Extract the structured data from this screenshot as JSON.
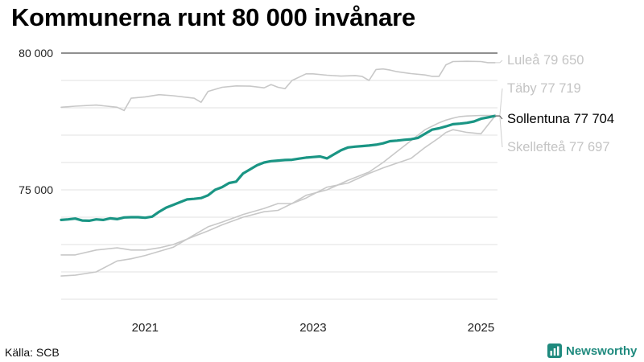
{
  "title": "Kommunerna runt 80 000 invånare",
  "source": "Källa: SCB",
  "brand": "Newsworthy",
  "colors": {
    "highlight": "#1a9584",
    "muted": "#c8c8c8",
    "brand": "#1f8a7e"
  },
  "chart_data": {
    "type": "line",
    "title": "Kommunerna runt 80 000 invånare",
    "xlabel": "",
    "ylabel": "",
    "x_ticks": [
      "2021",
      "2023",
      "2025"
    ],
    "y_ticks": [
      "75 000",
      "80 000"
    ],
    "ylim": [
      71000,
      80300
    ],
    "grid": true,
    "legend": "direct labels at line ends",
    "series": [
      {
        "name": "Luleå",
        "end_label": "Luleå 79 650",
        "highlight": false,
        "x": [
          "2020-01",
          "2020-03",
          "2020-06",
          "2020-09",
          "2020-10",
          "2020-11",
          "2021-01",
          "2021-03",
          "2021-05",
          "2021-07",
          "2021-08",
          "2021-09",
          "2021-10",
          "2021-12",
          "2022-02",
          "2022-04",
          "2022-06",
          "2022-07",
          "2022-08",
          "2022-09",
          "2022-10",
          "2022-12",
          "2023-01",
          "2023-03",
          "2023-05",
          "2023-07",
          "2023-08",
          "2023-09",
          "2023-10",
          "2023-11",
          "2023-12",
          "2024-01",
          "2024-03",
          "2024-05",
          "2024-06",
          "2024-07",
          "2024-08",
          "2024-09",
          "2024-11",
          "2025-01",
          "2025-02",
          "2025-03"
        ],
        "y": [
          78020,
          78060,
          78100,
          78020,
          77900,
          78350,
          78400,
          78480,
          78440,
          78380,
          78350,
          78200,
          78600,
          78750,
          78800,
          78790,
          78730,
          78850,
          78750,
          78700,
          79000,
          79240,
          79240,
          79190,
          79160,
          79180,
          79150,
          79000,
          79400,
          79420,
          79380,
          79320,
          79250,
          79200,
          79150,
          79150,
          79570,
          79690,
          79700,
          79690,
          79650,
          79650
        ]
      },
      {
        "name": "Täby",
        "end_label": "Täby 77 719",
        "highlight": false,
        "x": [
          "2020-01",
          "2020-03",
          "2020-06",
          "2020-09",
          "2020-11",
          "2021-01",
          "2021-03",
          "2021-05",
          "2021-06",
          "2021-07",
          "2021-08",
          "2021-10",
          "2021-12",
          "2022-03",
          "2022-06",
          "2022-08",
          "2022-10",
          "2022-12",
          "2023-03",
          "2023-06",
          "2023-09",
          "2023-11",
          "2024-01",
          "2024-03",
          "2024-05",
          "2024-07",
          "2024-08",
          "2024-09",
          "2024-10",
          "2024-11",
          "2025-01",
          "2025-03"
        ],
        "y": [
          72620,
          72620,
          72800,
          72880,
          72800,
          72800,
          72880,
          73000,
          73100,
          73200,
          73300,
          73500,
          73720,
          74000,
          74200,
          74250,
          74500,
          74800,
          75000,
          75350,
          75650,
          76000,
          76400,
          76800,
          77200,
          77450,
          77550,
          77620,
          77680,
          77700,
          77720,
          77719
        ]
      },
      {
        "name": "Skellefteå",
        "end_label": "Skellefteå 77 697",
        "highlight": false,
        "x": [
          "2020-01",
          "2020-03",
          "2020-06",
          "2020-09",
          "2020-11",
          "2021-01",
          "2021-03",
          "2021-05",
          "2021-06",
          "2021-07",
          "2021-08",
          "2021-10",
          "2021-12",
          "2022-03",
          "2022-06",
          "2022-08",
          "2022-10",
          "2022-12",
          "2023-03",
          "2023-06",
          "2023-09",
          "2023-11",
          "2024-01",
          "2024-03",
          "2024-05",
          "2024-07",
          "2024-08",
          "2024-09",
          "2024-10",
          "2024-11",
          "2025-01",
          "2025-03"
        ],
        "y": [
          71850,
          71880,
          72000,
          72400,
          72480,
          72600,
          72750,
          72900,
          73050,
          73200,
          73350,
          73650,
          73820,
          74100,
          74320,
          74500,
          74500,
          74700,
          75100,
          75250,
          75600,
          75800,
          75980,
          76150,
          76550,
          76900,
          77100,
          77200,
          77150,
          77100,
          77050,
          77697
        ]
      },
      {
        "name": "Sollentuna",
        "end_label": "Sollentuna 77 704",
        "highlight": true,
        "x": [
          "2020-01",
          "2020-02",
          "2020-03",
          "2020-04",
          "2020-05",
          "2020-06",
          "2020-07",
          "2020-08",
          "2020-09",
          "2020-10",
          "2020-11",
          "2020-12",
          "2021-01",
          "2021-02",
          "2021-03",
          "2021-04",
          "2021-05",
          "2021-06",
          "2021-07",
          "2021-08",
          "2021-09",
          "2021-10",
          "2021-11",
          "2021-12",
          "2022-01",
          "2022-02",
          "2022-03",
          "2022-04",
          "2022-05",
          "2022-06",
          "2022-07",
          "2022-08",
          "2022-09",
          "2022-10",
          "2022-11",
          "2022-12",
          "2023-01",
          "2023-02",
          "2023-03",
          "2023-04",
          "2023-05",
          "2023-06",
          "2023-07",
          "2023-08",
          "2023-09",
          "2023-10",
          "2023-11",
          "2023-12",
          "2024-01",
          "2024-02",
          "2024-03",
          "2024-04",
          "2024-05",
          "2024-06",
          "2024-07",
          "2024-08",
          "2024-09",
          "2024-10",
          "2024-11",
          "2024-12",
          "2025-01",
          "2025-02",
          "2025-03"
        ],
        "y": [
          73900,
          73920,
          73950,
          73880,
          73870,
          73920,
          73900,
          73960,
          73930,
          73990,
          74000,
          74000,
          73980,
          74020,
          74200,
          74350,
          74450,
          74550,
          74650,
          74670,
          74700,
          74800,
          75000,
          75100,
          75250,
          75300,
          75600,
          75750,
          75900,
          76000,
          76050,
          76070,
          76090,
          76100,
          76140,
          76180,
          76200,
          76220,
          76150,
          76300,
          76450,
          76550,
          76580,
          76600,
          76620,
          76650,
          76700,
          76780,
          76800,
          76830,
          76850,
          76900,
          77050,
          77200,
          77250,
          77320,
          77400,
          77420,
          77450,
          77500,
          77600,
          77650,
          77704
        ]
      }
    ]
  }
}
